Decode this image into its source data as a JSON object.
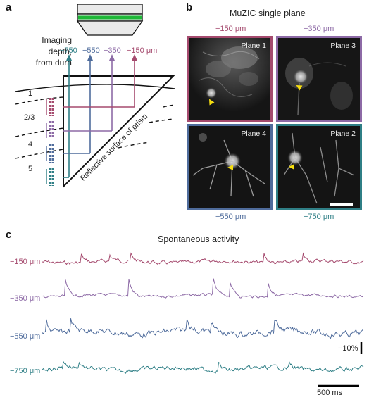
{
  "panels": {
    "a": "a",
    "b": "b",
    "c": "c"
  },
  "colors": {
    "d150": "#a54a6e",
    "d350": "#8d6aa6",
    "d550": "#4f6c9c",
    "d750": "#2f7f86",
    "objective_band": "#1fb838",
    "marker": "#f5dd10"
  },
  "panel_a": {
    "depth_heading": [
      "Imaging",
      "depth,",
      "from dura"
    ],
    "depths": [
      "−750",
      "−550",
      "−350",
      "−150 μm"
    ],
    "layers": [
      "1",
      "2/3",
      "4",
      "5"
    ],
    "prism_label": "Reflective surface of prism"
  },
  "panel_b": {
    "title": "MuZIC single plane",
    "top_left_depth": "−150 μm",
    "top_right_depth": "−350 μm",
    "bottom_left_depth": "−550 μm",
    "bottom_right_depth": "−750 μm",
    "planes": [
      "Plane 1",
      "Plane 3",
      "Plane 4",
      "Plane 2"
    ]
  },
  "panel_c": {
    "title": "Spontaneous activity",
    "traces": [
      {
        "label": "−150 μm",
        "color": "#a54a6e"
      },
      {
        "label": "−350 μm",
        "color": "#8d6aa6"
      },
      {
        "label": "−550 μm",
        "color": "#4f6c9c"
      },
      {
        "label": "−750 μm",
        "color": "#2f7f86"
      }
    ],
    "scale_y": "−10%",
    "scale_x": "500 ms"
  }
}
